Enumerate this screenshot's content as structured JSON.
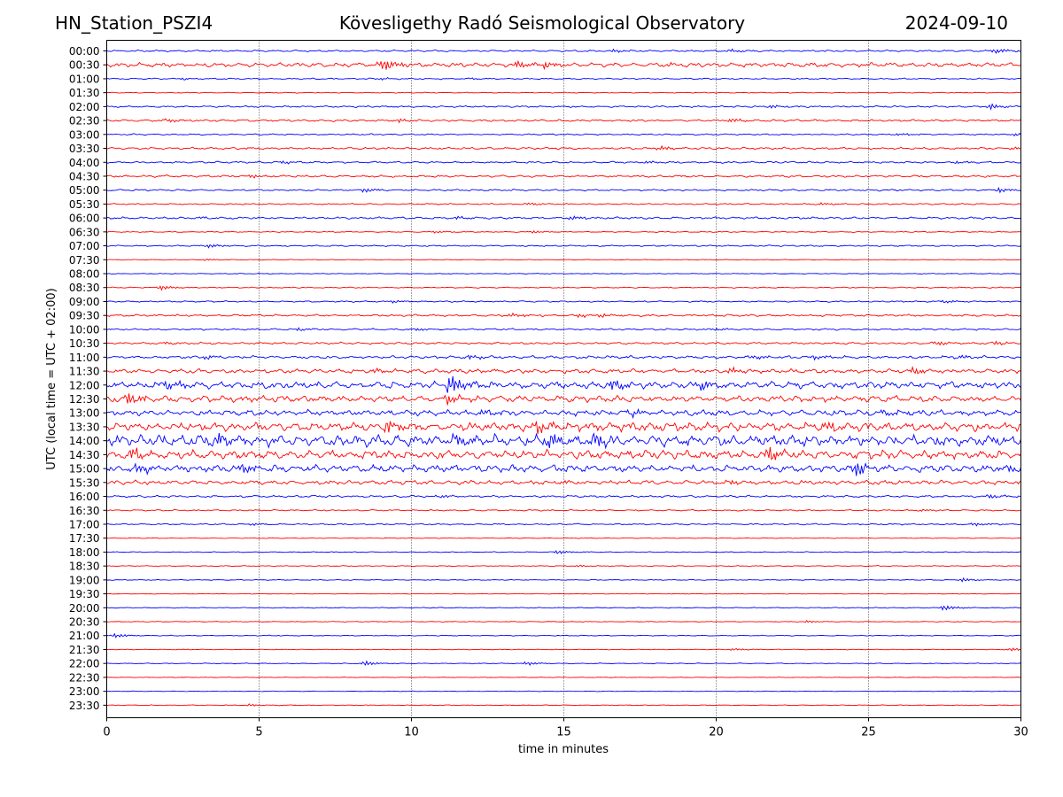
{
  "header": {
    "station": "HN_Station_PSZI4",
    "observatory": "Kövesligethy Radó Seismological Observatory",
    "date": "2024-09-10"
  },
  "chart_data": {
    "type": "line",
    "title": "Kövesligethy Radó Seismological Observatory",
    "xlabel": "time in minutes",
    "ylabel": "UTC (local time = UTC + 02:00)",
    "xlim": [
      0,
      30
    ],
    "xticks": [
      0,
      5,
      10,
      15,
      20,
      25,
      30
    ],
    "grid": "vertical dotted at x ticks",
    "row_colors": [
      "#0000ff",
      "#ff0000"
    ],
    "rows": [
      {
        "label": "00:00",
        "level": 0.25,
        "events": [
          [
            16.6,
            0.5
          ],
          [
            20.5,
            0.6
          ],
          [
            29.2,
            0.8
          ]
        ]
      },
      {
        "label": "00:30",
        "level": 0.6,
        "events": [
          [
            9.1,
            2.0
          ],
          [
            13.5,
            1.2
          ],
          [
            14.4,
            1.0
          ],
          [
            18.5,
            0.6
          ]
        ]
      },
      {
        "label": "01:00",
        "level": 0.2,
        "events": [
          [
            2.5,
            0.3
          ],
          [
            9.0,
            0.3
          ],
          [
            12.0,
            0.3
          ]
        ]
      },
      {
        "label": "01:30",
        "level": 0.12,
        "events": []
      },
      {
        "label": "02:00",
        "level": 0.25,
        "events": [
          [
            21.8,
            0.5
          ],
          [
            29.0,
            1.0
          ]
        ]
      },
      {
        "label": "02:30",
        "level": 0.3,
        "events": [
          [
            2.0,
            0.5
          ],
          [
            9.6,
            0.6
          ],
          [
            20.5,
            0.7
          ]
        ]
      },
      {
        "label": "03:00",
        "level": 0.2,
        "events": [
          [
            26.0,
            0.4
          ],
          [
            29.8,
            0.5
          ]
        ]
      },
      {
        "label": "03:30",
        "level": 0.3,
        "events": [
          [
            18.2,
            0.7
          ],
          [
            29.8,
            0.6
          ]
        ]
      },
      {
        "label": "04:00",
        "level": 0.25,
        "events": [
          [
            5.8,
            0.5
          ],
          [
            17.7,
            0.4
          ],
          [
            27.9,
            0.4
          ]
        ]
      },
      {
        "label": "04:30",
        "level": 0.3,
        "events": [
          [
            4.8,
            0.6
          ]
        ]
      },
      {
        "label": "05:00",
        "level": 0.25,
        "events": [
          [
            8.5,
            0.7
          ],
          [
            29.3,
            0.8
          ]
        ]
      },
      {
        "label": "05:30",
        "level": 0.2,
        "events": [
          [
            13.9,
            0.4
          ],
          [
            23.5,
            0.4
          ]
        ]
      },
      {
        "label": "06:00",
        "level": 0.3,
        "events": [
          [
            3.0,
            0.4
          ],
          [
            11.5,
            0.5
          ],
          [
            15.3,
            0.6
          ]
        ]
      },
      {
        "label": "06:30",
        "level": 0.15,
        "events": [
          [
            10.8,
            0.4
          ],
          [
            14.0,
            0.4
          ]
        ]
      },
      {
        "label": "07:00",
        "level": 0.2,
        "events": [
          [
            3.4,
            0.6
          ]
        ]
      },
      {
        "label": "07:30",
        "level": 0.1,
        "events": [
          [
            3.3,
            0.3
          ]
        ]
      },
      {
        "label": "08:00",
        "level": 0.1,
        "events": []
      },
      {
        "label": "08:30",
        "level": 0.15,
        "events": [
          [
            1.8,
            0.8
          ]
        ]
      },
      {
        "label": "09:00",
        "level": 0.2,
        "events": [
          [
            9.4,
            0.4
          ],
          [
            27.5,
            0.5
          ]
        ]
      },
      {
        "label": "09:30",
        "level": 0.3,
        "events": [
          [
            13.3,
            0.6
          ],
          [
            15.5,
            0.6
          ],
          [
            16.3,
            0.5
          ]
        ]
      },
      {
        "label": "10:00",
        "level": 0.25,
        "events": [
          [
            6.3,
            0.5
          ],
          [
            10.2,
            0.4
          ],
          [
            20.0,
            0.4
          ]
        ]
      },
      {
        "label": "10:30",
        "level": 0.3,
        "events": [
          [
            2.0,
            0.4
          ],
          [
            27.3,
            0.7
          ],
          [
            29.2,
            0.6
          ]
        ]
      },
      {
        "label": "11:00",
        "level": 0.4,
        "events": [
          [
            3.3,
            0.6
          ],
          [
            12.0,
            0.7
          ],
          [
            21.3,
            0.7
          ],
          [
            23.2,
            0.7
          ],
          [
            28.0,
            0.6
          ]
        ]
      },
      {
        "label": "11:30",
        "level": 0.6,
        "events": [
          [
            8.8,
            0.8
          ],
          [
            20.5,
            0.9
          ],
          [
            26.5,
            0.8
          ]
        ]
      },
      {
        "label": "12:00",
        "level": 1.0,
        "events": [
          [
            2.0,
            1.5
          ],
          [
            11.3,
            3.0
          ],
          [
            16.6,
            2.0
          ],
          [
            19.5,
            1.5
          ]
        ]
      },
      {
        "label": "12:30",
        "level": 0.9,
        "events": [
          [
            0.7,
            2.0
          ],
          [
            11.2,
            1.5
          ]
        ]
      },
      {
        "label": "13:00",
        "level": 0.8,
        "events": [
          [
            12.3,
            1.0
          ],
          [
            17.2,
            1.2
          ],
          [
            25.5,
            1.0
          ]
        ]
      },
      {
        "label": "13:30",
        "level": 1.2,
        "events": [
          [
            9.2,
            2.0
          ],
          [
            14.1,
            2.0
          ],
          [
            23.6,
            1.5
          ]
        ]
      },
      {
        "label": "14:00",
        "level": 1.6,
        "events": [
          [
            3.7,
            2.0
          ],
          [
            11.5,
            2.0
          ],
          [
            14.5,
            2.2
          ],
          [
            16.0,
            2.0
          ]
        ]
      },
      {
        "label": "14:30",
        "level": 1.2,
        "events": [
          [
            0.8,
            2.0
          ],
          [
            21.7,
            2.2
          ]
        ]
      },
      {
        "label": "15:00",
        "level": 1.0,
        "events": [
          [
            1.0,
            1.5
          ],
          [
            4.5,
            1.2
          ],
          [
            24.6,
            2.5
          ],
          [
            29.5,
            1.0
          ]
        ]
      },
      {
        "label": "15:30",
        "level": 0.6,
        "events": [
          [
            15.0,
            0.7
          ],
          [
            20.5,
            0.8
          ]
        ]
      },
      {
        "label": "16:00",
        "level": 0.3,
        "events": [
          [
            11.0,
            0.5
          ],
          [
            29.0,
            0.6
          ]
        ]
      },
      {
        "label": "16:30",
        "level": 0.2,
        "events": [
          [
            26.8,
            0.4
          ]
        ]
      },
      {
        "label": "17:00",
        "level": 0.2,
        "events": [
          [
            4.8,
            0.4
          ],
          [
            28.5,
            0.5
          ]
        ]
      },
      {
        "label": "17:30",
        "level": 0.1,
        "events": []
      },
      {
        "label": "18:00",
        "level": 0.12,
        "events": [
          [
            14.8,
            0.6
          ]
        ]
      },
      {
        "label": "18:30",
        "level": 0.12,
        "events": [
          [
            15.5,
            0.3
          ]
        ]
      },
      {
        "label": "19:00",
        "level": 0.12,
        "events": [
          [
            28.1,
            0.6
          ]
        ]
      },
      {
        "label": "19:30",
        "level": 0.08,
        "events": []
      },
      {
        "label": "20:00",
        "level": 0.12,
        "events": [
          [
            27.5,
            0.9
          ]
        ]
      },
      {
        "label": "20:30",
        "level": 0.1,
        "events": [
          [
            23.0,
            0.4
          ]
        ]
      },
      {
        "label": "21:00",
        "level": 0.12,
        "events": [
          [
            0.3,
            0.7
          ]
        ]
      },
      {
        "label": "21:30",
        "level": 0.1,
        "events": [
          [
            20.6,
            0.4
          ],
          [
            29.7,
            0.5
          ]
        ]
      },
      {
        "label": "22:00",
        "level": 0.12,
        "events": [
          [
            8.5,
            0.8
          ],
          [
            13.8,
            0.6
          ]
        ]
      },
      {
        "label": "22:30",
        "level": 0.08,
        "events": []
      },
      {
        "label": "23:00",
        "level": 0.08,
        "events": []
      },
      {
        "label": "23:30",
        "level": 0.1,
        "events": [
          [
            4.7,
            0.4
          ]
        ]
      }
    ]
  }
}
